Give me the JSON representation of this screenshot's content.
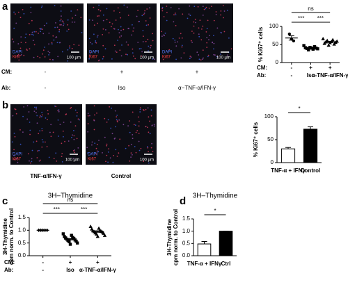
{
  "panel_labels": [
    "a",
    "b",
    "c",
    "d"
  ],
  "image_legend": {
    "stain1": "DAPI",
    "stain2": "Ki67",
    "scale_bar": "100 µm"
  },
  "panel_a_rows": [
    {
      "label": "CM:",
      "values": [
        "-",
        "+",
        "+"
      ]
    },
    {
      "label": "Ab:",
      "values": [
        "-",
        "Iso",
        "α−TNF-α/IFN-γ"
      ]
    }
  ],
  "panel_b_labels": [
    "TNF-α/IFN-γ",
    "Control"
  ],
  "chart_data": [
    {
      "type": "dot",
      "ylabel": [
        "% Ki67⁺ cells"
      ],
      "ylim": [
        0,
        100
      ],
      "yticks": [
        0,
        50,
        100
      ],
      "markers": [
        "circle",
        "square",
        "triangle"
      ],
      "groups": [
        {
          "points": [
            79,
            65,
            60
          ],
          "mean": 68,
          "sem": 6
        },
        {
          "points": [
            47,
            44,
            42,
            41,
            40,
            40,
            39,
            38,
            37,
            35
          ],
          "mean": 40,
          "sem": 1.2
        },
        {
          "points": [
            66,
            63,
            61,
            59,
            58,
            57,
            56,
            55,
            53,
            51,
            48
          ],
          "mean": 57,
          "sem": 1.6
        }
      ],
      "rows": [
        {
          "label": "CM:",
          "values": [
            "-",
            "+",
            "+"
          ]
        },
        {
          "label": "Ab:",
          "values": [
            "-",
            "Iso",
            "α-TNF-α/IFN-γ"
          ]
        }
      ],
      "comparisons": [
        {
          "groups": [
            0,
            1
          ],
          "label": "***"
        },
        {
          "groups": [
            1,
            2
          ],
          "label": "***"
        },
        {
          "groups": [
            0,
            2
          ],
          "label": "ns"
        }
      ]
    },
    {
      "type": "bar",
      "ylabel": [
        "% Ki67⁺ cells"
      ],
      "ylim": [
        0,
        100
      ],
      "yticks": [
        0,
        50,
        100
      ],
      "categories": [
        "TNF-α + IFNγ",
        "Control"
      ],
      "values": [
        30,
        73
      ],
      "errors": [
        3,
        5
      ],
      "colors": [
        "#ffffff",
        "#000000"
      ],
      "comparisons": [
        {
          "groups": [
            0,
            1
          ],
          "label": "*"
        }
      ]
    },
    {
      "type": "dot",
      "title": "3H–Thymidine",
      "ylabel": [
        "3H-Thymidine",
        "cpm norm. to Control"
      ],
      "ylim": [
        0,
        1.5
      ],
      "yticks": [
        {
          "value": 0,
          "label": "0.0"
        },
        0.5,
        {
          "value": 1,
          "label": "1.0"
        },
        1.5
      ],
      "markers": [
        "diamond",
        "square",
        "triangle"
      ],
      "groups": [
        {
          "points": [
            1,
            1,
            1,
            1,
            1
          ],
          "mean": 1,
          "sem": 0
        },
        {
          "points": [
            0.86,
            0.8,
            0.75,
            0.72,
            0.7,
            0.68,
            0.65,
            0.62,
            0.6,
            0.57,
            0.55,
            0.5,
            0.45
          ],
          "mean": 0.65,
          "sem": 0.03
        },
        {
          "points": [
            1.15,
            1.08,
            1.05,
            1.0,
            0.98,
            0.96,
            0.95,
            0.93,
            0.9,
            0.88,
            0.85,
            0.8,
            0.76
          ],
          "mean": 0.95,
          "sem": 0.03
        }
      ],
      "rows": [
        {
          "label": "CM:",
          "values": [
            "-",
            "+",
            "+"
          ]
        },
        {
          "label": "Ab:",
          "values": [
            "-",
            "Iso",
            "α-TNF-α/IFN-γ"
          ]
        }
      ],
      "comparisons": [
        {
          "groups": [
            0,
            1
          ],
          "label": "***"
        },
        {
          "groups": [
            1,
            2
          ],
          "label": "***"
        },
        {
          "groups": [
            0,
            2
          ],
          "label": "ns"
        }
      ]
    },
    {
      "type": "bar",
      "title": "3H–Thymidine",
      "ylabel": [
        "3H-Thymidine",
        "cpm norm. to Control"
      ],
      "ylim": [
        0,
        1.5
      ],
      "yticks": [
        {
          "value": 0,
          "label": "0.0"
        },
        0.5,
        {
          "value": 1,
          "label": "1.0"
        },
        1.5
      ],
      "categories": [
        "TNF-α + IFNγ",
        "Ctrl"
      ],
      "values": [
        0.48,
        1.0
      ],
      "errors": [
        0.1,
        0
      ],
      "colors": [
        "#ffffff",
        "#000000"
      ],
      "comparisons": [
        {
          "groups": [
            0,
            1
          ],
          "label": "*"
        }
      ]
    }
  ]
}
